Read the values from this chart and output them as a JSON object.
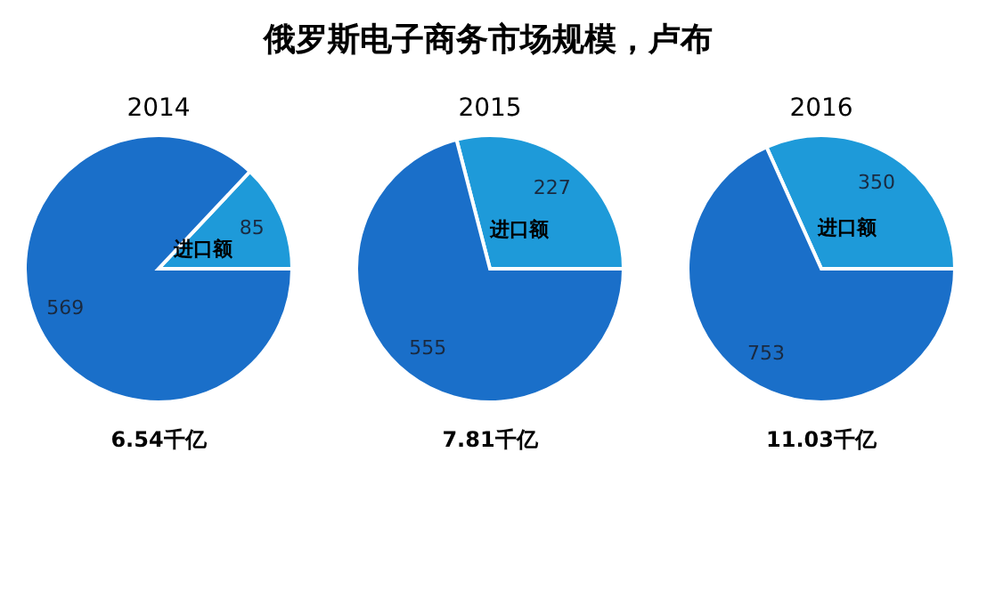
{
  "chart_data": [
    {
      "type": "other",
      "title": "俄罗斯电子商务市场规模，卢布"
    },
    {
      "type": "pie",
      "title": "2014",
      "categories": [
        "进口额",
        null
      ],
      "values": [
        85,
        569
      ],
      "colors": [
        "#1e9ad9",
        "#1a6fc9"
      ],
      "data_labels": true,
      "annotations": [
        "6.54千亿"
      ]
    },
    {
      "type": "pie",
      "title": "2015",
      "categories": [
        "进口额",
        null
      ],
      "values": [
        227,
        555
      ],
      "colors": [
        "#1e9ad9",
        "#1a6fc9"
      ],
      "data_labels": true,
      "annotations": [
        "7.81千亿"
      ]
    },
    {
      "type": "pie",
      "title": "2016",
      "categories": [
        "进口额",
        null
      ],
      "values": [
        350,
        753
      ],
      "colors": [
        "#1e9ad9",
        "#1a6fc9"
      ],
      "data_labels": true,
      "annotations": [
        "11.03千亿"
      ]
    }
  ]
}
